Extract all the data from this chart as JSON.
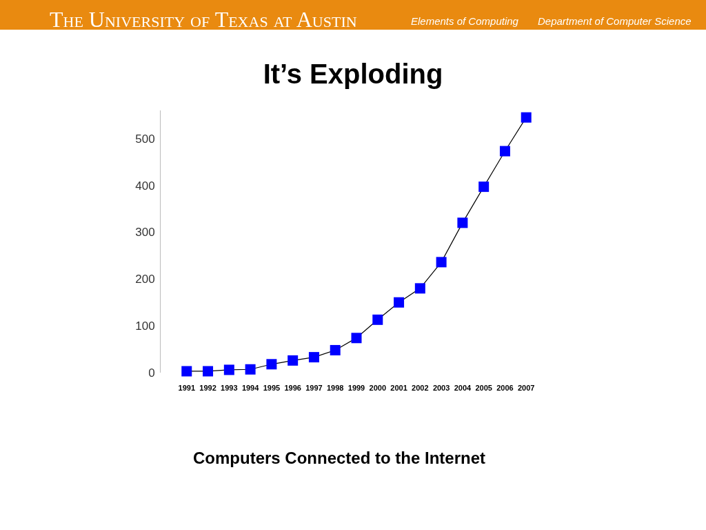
{
  "chart_data": {
    "type": "line",
    "title": "It’s Exploding",
    "categories": [
      "1991",
      "1992",
      "1993",
      "1994",
      "1995",
      "1996",
      "1997",
      "1998",
      "1999",
      "2000",
      "2001",
      "2002",
      "2003",
      "2004",
      "2005",
      "2006",
      "2007"
    ],
    "series": [
      {
        "color": "#0000ff",
        "values": [
          3,
          3,
          6,
          7,
          18,
          26,
          33,
          48,
          74,
          113,
          150,
          180,
          236,
          320,
          397,
          473,
          545
        ]
      }
    ],
    "ylim": [
      0,
      560
    ],
    "yticks": [
      0,
      100,
      200,
      300,
      400,
      500
    ],
    "marker": "square",
    "line_style": "solid",
    "grid": false,
    "annotations": [
      "The University of Texas at Austin",
      "Elements of Computing",
      "Department of Computer Science",
      "Computers Connected to the Internet"
    ]
  }
}
